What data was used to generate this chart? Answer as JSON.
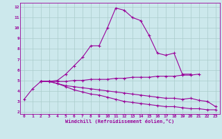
{
  "xlabel": "Windchill (Refroidissement éolien,°C)",
  "bg_color": "#cce8ec",
  "line_color": "#990099",
  "grid_color": "#aacccc",
  "xlim": [
    -0.5,
    23.5
  ],
  "ylim": [
    1.8,
    12.4
  ],
  "xticks": [
    0,
    1,
    2,
    3,
    4,
    5,
    6,
    7,
    8,
    9,
    10,
    11,
    12,
    13,
    14,
    15,
    16,
    17,
    18,
    19,
    20,
    21,
    22,
    23
  ],
  "yticks": [
    2,
    3,
    4,
    5,
    6,
    7,
    8,
    9,
    10,
    11,
    12
  ],
  "line1_x": [
    0,
    1,
    2,
    3,
    4,
    5,
    6,
    7,
    8,
    9,
    10,
    11,
    12,
    13,
    14,
    15,
    16,
    17,
    18,
    19,
    20
  ],
  "line1_y": [
    3.2,
    4.2,
    4.9,
    4.9,
    5.0,
    5.6,
    6.4,
    7.2,
    8.3,
    8.3,
    10.0,
    11.9,
    11.7,
    11.0,
    10.7,
    9.3,
    7.6,
    7.4,
    7.6,
    5.6,
    5.6
  ],
  "line2_x": [
    2,
    3,
    4,
    5,
    6,
    7,
    8,
    9,
    10,
    11,
    12,
    13,
    14,
    15,
    16,
    17,
    18,
    19,
    20,
    21
  ],
  "line2_y": [
    4.9,
    4.9,
    4.9,
    4.9,
    5.0,
    5.0,
    5.1,
    5.1,
    5.1,
    5.2,
    5.2,
    5.3,
    5.3,
    5.3,
    5.4,
    5.4,
    5.4,
    5.5,
    5.5,
    5.6
  ],
  "line3_x": [
    2,
    3,
    4,
    5,
    6,
    7,
    8,
    9,
    10,
    11,
    12,
    13,
    14,
    15,
    16,
    17,
    18,
    19,
    20,
    21,
    22,
    23
  ],
  "line3_y": [
    4.9,
    4.9,
    4.7,
    4.5,
    4.4,
    4.3,
    4.2,
    4.1,
    4.0,
    3.9,
    3.8,
    3.7,
    3.6,
    3.5,
    3.4,
    3.3,
    3.3,
    3.2,
    3.3,
    3.1,
    3.0,
    2.5
  ],
  "line4_x": [
    2,
    3,
    4,
    5,
    6,
    7,
    8,
    9,
    10,
    11,
    12,
    13,
    14,
    15,
    16,
    17,
    18,
    19,
    20,
    21,
    22,
    23
  ],
  "line4_y": [
    4.9,
    4.9,
    4.7,
    4.4,
    4.1,
    3.9,
    3.7,
    3.6,
    3.4,
    3.2,
    3.0,
    2.9,
    2.8,
    2.7,
    2.6,
    2.5,
    2.5,
    2.4,
    2.3,
    2.3,
    2.2,
    2.2
  ]
}
